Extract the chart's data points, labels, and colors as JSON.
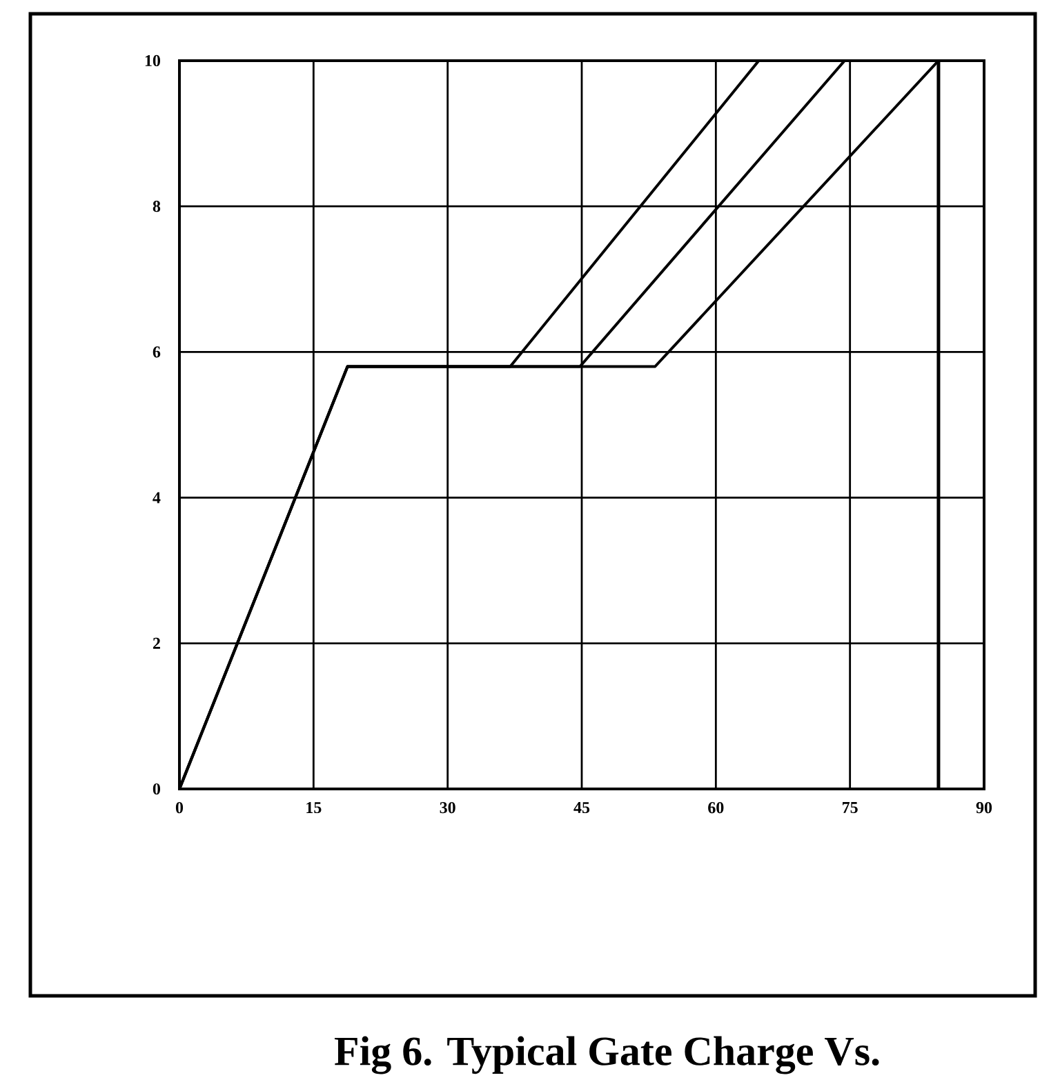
{
  "chart_data": {
    "type": "line",
    "title": "Fig 6. Typical Gate Charge Vs.",
    "series": [
      {
        "color": "#000000",
        "x": [
          0,
          18.8,
          37,
          64.8
        ],
        "values": [
          0,
          5.8,
          5.8,
          10
        ]
      },
      {
        "color": "#000000",
        "x": [
          0,
          18.8,
          44.8,
          74.4
        ],
        "values": [
          0,
          5.8,
          5.8,
          10
        ]
      },
      {
        "color": "#000000",
        "x": [
          0,
          18.8,
          53.2,
          84.9
        ],
        "values": [
          0,
          5.8,
          5.8,
          10
        ]
      }
    ],
    "ref_lines": [
      {
        "axis": "x",
        "value": 84.9,
        "label": null,
        "color": "#000000"
      }
    ],
    "xlim": [
      0,
      90
    ],
    "ylim": [
      0,
      10
    ],
    "xticks": [
      0,
      15,
      30,
      45,
      60,
      75,
      90
    ],
    "yticks": [
      0,
      2,
      4,
      6,
      8,
      10
    ],
    "grid": true,
    "marker": "none",
    "line_style": "solid"
  }
}
